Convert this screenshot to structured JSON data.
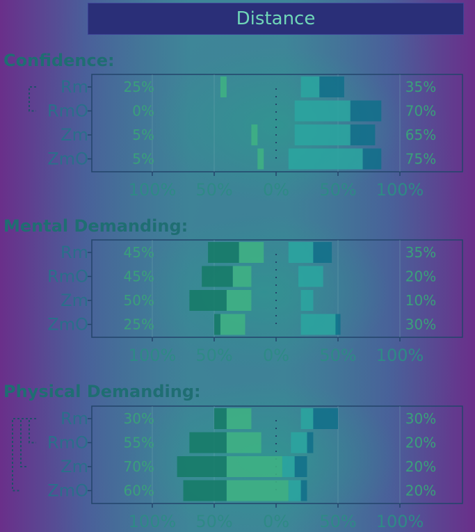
{
  "header": {
    "title": "Distance"
  },
  "colors": {
    "neg_dark": "#157a66",
    "neg_mid": "#2c9a78",
    "neg_light": "#3fb382",
    "pos_light": "#2aa6a0",
    "pos_mid": "#1f85a0",
    "pos_dark": "#11708a"
  },
  "chart_data": [
    {
      "type": "bar",
      "title": "Confidence:",
      "categories": [
        "Rm",
        "RmO",
        "Zm",
        "ZmO"
      ],
      "x_tick_labels": [
        "100%",
        "50%",
        "0%",
        "50%",
        "100%"
      ],
      "xlim": [
        -100,
        100
      ],
      "left_percent_labels": [
        "25%",
        "0%",
        "5%",
        "5%"
      ],
      "right_percent_labels": [
        "35%",
        "70%",
        "65%",
        "75%"
      ],
      "series": [
        {
          "values": [
            [
              -40,
              -45
            ],
            [
              0,
              0
            ],
            [
              -15,
              -20
            ],
            [
              -10,
              -15
            ]
          ]
        },
        {
          "values": [
            [
              20,
              35
            ],
            [
              15,
              60
            ],
            [
              15,
              60
            ],
            [
              10,
              70
            ]
          ]
        },
        {
          "values": [
            [
              35,
              55
            ],
            [
              60,
              85
            ],
            [
              60,
              80
            ],
            [
              70,
              85
            ]
          ]
        }
      ],
      "brackets": [
        [
          "Rm",
          "RmO"
        ]
      ]
    },
    {
      "type": "bar",
      "title": "Mental Demanding:",
      "categories": [
        "Rm",
        "RmO",
        "Zm",
        "ZmO"
      ],
      "x_tick_labels": [
        "100%",
        "50%",
        "0%",
        "50%",
        "100%"
      ],
      "xlim": [
        -100,
        100
      ],
      "left_percent_labels": [
        "45%",
        "45%",
        "50%",
        "25%"
      ],
      "right_percent_labels": [
        "35%",
        "20%",
        "10%",
        "30%"
      ],
      "series": [
        {
          "values": [
            [
              -10,
              -30
            ],
            [
              -20,
              -35
            ],
            [
              -20,
              -40
            ],
            [
              -25,
              -45
            ]
          ]
        },
        {
          "values": [
            [
              -30,
              -55
            ],
            [
              -35,
              -60
            ],
            [
              -40,
              -70
            ],
            [
              -45,
              -50
            ]
          ]
        },
        {
          "values": [
            [
              10,
              30
            ],
            [
              18,
              38
            ],
            [
              20,
              30
            ],
            [
              20,
              50
            ]
          ]
        },
        {
          "values": [
            [
              30,
              45
            ],
            [
              0,
              0
            ],
            [
              0,
              0
            ],
            [
              48,
              52
            ]
          ]
        }
      ],
      "brackets": []
    },
    {
      "type": "bar",
      "title": "Physical Demanding:",
      "categories": [
        "Rm",
        "RmO",
        "Zm",
        "ZmO"
      ],
      "x_tick_labels": [
        "100%",
        "50%",
        "0%",
        "50%",
        "100%"
      ],
      "xlim": [
        -100,
        100
      ],
      "left_percent_labels": [
        "30%",
        "55%",
        "70%",
        "60%"
      ],
      "right_percent_labels": [
        "30%",
        "20%",
        "20%",
        "20%"
      ],
      "series": [
        {
          "values": [
            [
              -20,
              -40
            ],
            [
              -12,
              -40
            ],
            [
              5,
              -40
            ],
            [
              10,
              -40
            ]
          ]
        },
        {
          "values": [
            [
              -40,
              -50
            ],
            [
              -40,
              -70
            ],
            [
              -40,
              -80
            ],
            [
              -40,
              -75
            ]
          ]
        },
        {
          "values": [
            [
              20,
              30
            ],
            [
              12,
              25
            ],
            [
              5,
              15
            ],
            [
              10,
              20
            ]
          ]
        },
        {
          "values": [
            [
              30,
              50
            ],
            [
              25,
              30
            ],
            [
              15,
              25
            ],
            [
              20,
              25
            ]
          ]
        }
      ],
      "brackets": [
        [
          "Rm",
          "RmO"
        ],
        [
          "Rm",
          "Zm"
        ],
        [
          "Rm",
          "ZmO"
        ]
      ]
    }
  ]
}
